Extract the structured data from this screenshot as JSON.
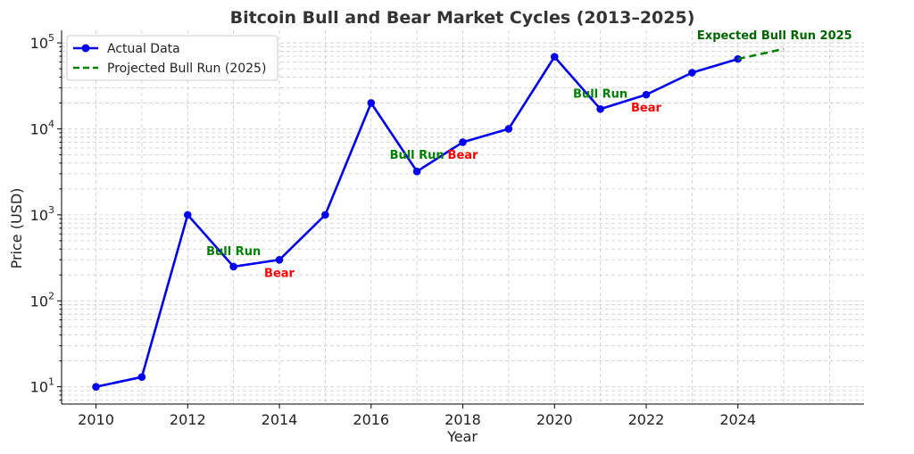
{
  "chart_data": {
    "type": "line",
    "title": "Bitcoin Bull and Bear Market Cycles (2013–2025)",
    "xlabel": "Year",
    "ylabel": "Price (USD)",
    "yscale": "log",
    "xlim": [
      2009.25,
      2026.75
    ],
    "ylim": [
      6.3,
      140000
    ],
    "grid": true,
    "legend_position": "top-left",
    "x_ticks": [
      2010,
      2012,
      2014,
      2016,
      2018,
      2020,
      2022,
      2024
    ],
    "x_tick_labels": [
      "2010",
      "2012",
      "2014",
      "2016",
      "2018",
      "2020",
      "2022",
      "2024"
    ],
    "y_ticks": [
      10,
      100,
      1000,
      10000,
      100000
    ],
    "y_tick_labels": [
      {
        "base": "10",
        "exp": "1"
      },
      {
        "base": "10",
        "exp": "2"
      },
      {
        "base": "10",
        "exp": "3"
      },
      {
        "base": "10",
        "exp": "4"
      },
      {
        "base": "10",
        "exp": "5"
      }
    ],
    "series": [
      {
        "name": "Actual Data",
        "color": "#0000ee",
        "style": "solid-markers",
        "x": [
          2010,
          2011,
          2012,
          2013,
          2014,
          2015,
          2016,
          2017,
          2018,
          2019,
          2020,
          2021,
          2022,
          2023,
          2024
        ],
        "y": [
          10,
          13,
          1000,
          250,
          300,
          1000,
          20000,
          3200,
          7000,
          10000,
          69000,
          17000,
          25000,
          45000,
          65000
        ]
      },
      {
        "name": "Projected Bull Run (2025)",
        "color": "#008000",
        "style": "dashed",
        "x": [
          2024,
          2025
        ],
        "y": [
          65000,
          85000
        ]
      }
    ],
    "annotations": [
      {
        "text": "Bull Run",
        "x": 2013,
        "y": 340,
        "color": "#008000"
      },
      {
        "text": "Bear",
        "x": 2014,
        "y": 190,
        "color": "#ff0000"
      },
      {
        "text": "Bull Run",
        "x": 2017,
        "y": 4500,
        "color": "#008000"
      },
      {
        "text": "Bear",
        "x": 2018,
        "y": 4500,
        "color": "#ff0000"
      },
      {
        "text": "Bull Run",
        "x": 2021,
        "y": 23000,
        "color": "#008000"
      },
      {
        "text": "Bear",
        "x": 2022,
        "y": 16000,
        "color": "#ff0000"
      },
      {
        "text": "Expected Bull Run 2025",
        "x": 2024.8,
        "y": 110000,
        "color": "#006400"
      }
    ]
  }
}
